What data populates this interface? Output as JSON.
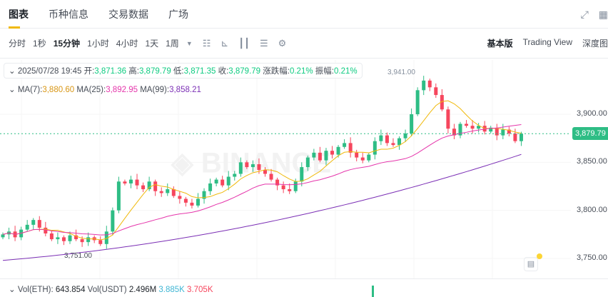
{
  "tabs": [
    "图表",
    "币种信息",
    "交易数据",
    "广场"
  ],
  "toolbar": {
    "intervals": [
      "分时",
      "1秒",
      "15分钟",
      "1小时",
      "4小时",
      "1天",
      "1周"
    ],
    "active": "15分钟",
    "views": [
      "基本版",
      "Trading View",
      "深度图"
    ]
  },
  "info": {
    "datetime": "2025/07/28 19:45",
    "open_label": "开:",
    "open": "3,871.36",
    "high_label": "高:",
    "high": "3,879.79",
    "low_label": "低:",
    "low": "3,871.35",
    "close_label": "收:",
    "close": "3,879.79",
    "change_label": "涨跌幅:",
    "change": "0.21%",
    "amp_label": "振幅:",
    "amp": "0.21%"
  },
  "ma": {
    "ma7_label": "MA(7):",
    "ma7": "3,880.60",
    "ma25_label": "MA(25):",
    "ma25": "3,892.95",
    "ma99_label": "MA(99):",
    "ma99": "3,858.21"
  },
  "volume": {
    "eth_label": "Vol(ETH):",
    "eth": "643.854",
    "usdt_label": "Vol(USDT)",
    "usdt": "2.496M",
    "buy": "3.885K",
    "sell": "3.705K"
  },
  "colors": {
    "up": "#2ebd85",
    "down": "#f6465d",
    "ma7": "#f0b90b",
    "ma25": "#e535ab",
    "ma99": "#7b2fb5"
  },
  "chart_data": {
    "type": "candlestick",
    "y_ticks": [
      "3,900.00",
      "3,850.00",
      "3,800.00",
      "3,750.00"
    ],
    "current_price": "3,879.79",
    "high_marker": "3,941.00",
    "low_marker": "3,751.00",
    "closes": [
      3775,
      3778,
      3772,
      3780,
      3785,
      3790,
      3782,
      3776,
      3770,
      3772,
      3768,
      3774,
      3770,
      3767,
      3772,
      3769,
      3765,
      3778,
      3800,
      3830,
      3828,
      3832,
      3826,
      3822,
      3830,
      3820,
      3818,
      3822,
      3815,
      3812,
      3808,
      3805,
      3812,
      3820,
      3828,
      3832,
      3826,
      3835,
      3838,
      3850,
      3845,
      3848,
      3842,
      3838,
      3832,
      3826,
      3822,
      3820,
      3830,
      3845,
      3855,
      3860,
      3852,
      3862,
      3858,
      3866,
      3870,
      3860,
      3855,
      3852,
      3858,
      3872,
      3878,
      3870,
      3868,
      3875,
      3880,
      3900,
      3925,
      3935,
      3928,
      3920,
      3905,
      3885,
      3878,
      3890,
      3888,
      3885,
      3888,
      3882,
      3886,
      3878,
      3884,
      3880,
      3872,
      3879.79
    ],
    "ma99_start": 3748,
    "ma99_end": 3858.21
  }
}
